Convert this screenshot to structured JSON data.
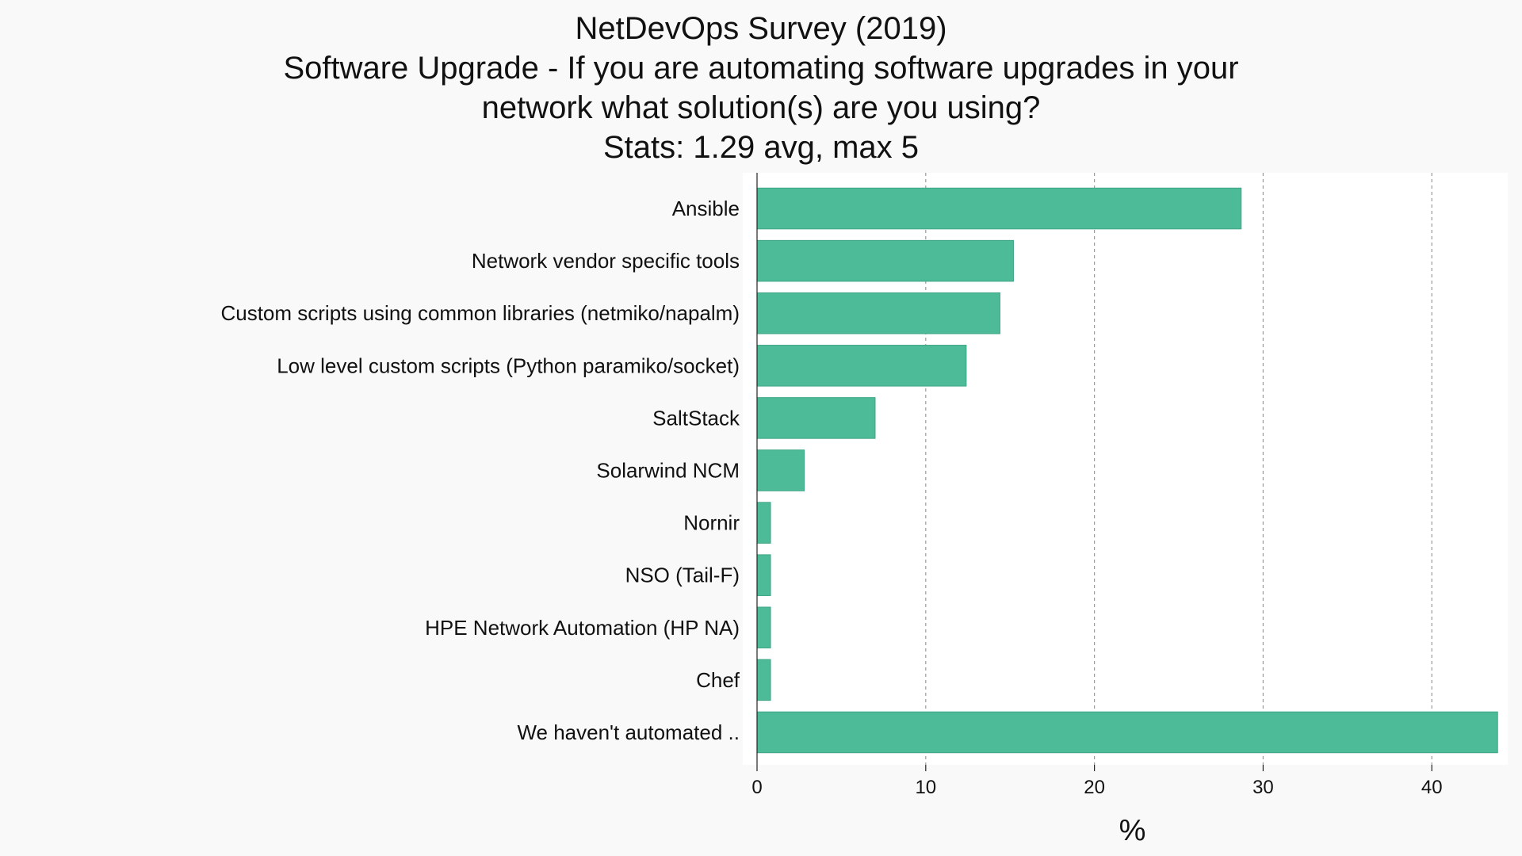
{
  "chart_data": {
    "type": "bar",
    "orientation": "horizontal",
    "title_lines": [
      "NetDevOps Survey (2019)",
      "Software Upgrade - If you are automating software upgrades in your",
      "network what solution(s) are you using?",
      "Stats: 1.29 avg, max 5"
    ],
    "categories": [
      "Ansible",
      "Network vendor specific tools",
      "Custom scripts using common libraries (netmiko/napalm)",
      "Low level custom scripts (Python paramiko/socket)",
      "SaltStack",
      "Solarwind NCM",
      "Nornir",
      "NSO (Tail-F)",
      "HPE Network Automation (HP NA)",
      "Chef",
      "We haven't automated .."
    ],
    "values": [
      28.7,
      15.2,
      14.4,
      12.4,
      7.0,
      2.8,
      0.8,
      0.8,
      0.8,
      0.8,
      43.9
    ],
    "xlabel": "%",
    "ylabel": "",
    "xlim": [
      0,
      44.5
    ],
    "xticks": [
      0,
      10,
      20,
      30,
      40
    ],
    "grid": "vertical-dashed",
    "bar_color": "#4dbb98",
    "bar_edge_color": "#3fa585",
    "plot_background": "#ffffff",
    "page_background": "#f9f9f9",
    "grid_color": "#9a9a9a"
  }
}
